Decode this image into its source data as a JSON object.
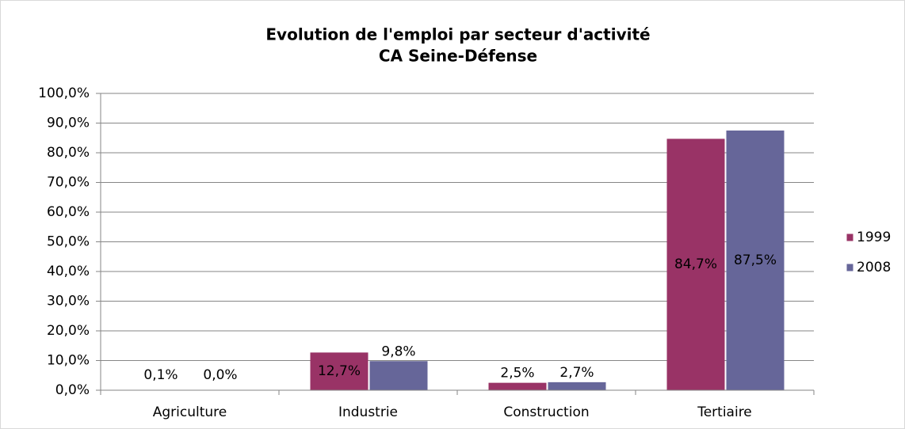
{
  "chart_data": {
    "type": "bar",
    "title": [
      "Evolution de l'emploi par secteur d'activité",
      "CA Seine-Défense"
    ],
    "categories": [
      "Agriculture",
      "Industrie",
      "Construction",
      "Tertiaire"
    ],
    "series": [
      {
        "name": "1999",
        "color": "#993366",
        "values": [
          0.1,
          12.7,
          2.5,
          84.7
        ],
        "value_labels": [
          "0,1%",
          "12,7%",
          "2,5%",
          "84,7%"
        ]
      },
      {
        "name": "2008",
        "color": "#666699",
        "values": [
          0.0,
          9.8,
          2.7,
          87.5
        ],
        "value_labels": [
          "0,0%",
          "9,8%",
          "2,7%",
          "87,5%"
        ]
      }
    ],
    "ylim": [
      0,
      100
    ],
    "yticks": [
      {
        "value": 0,
        "label": "0,0%"
      },
      {
        "value": 10,
        "label": "10,0%"
      },
      {
        "value": 20,
        "label": "20,0%"
      },
      {
        "value": 30,
        "label": "30,0%"
      },
      {
        "value": 40,
        "label": "40,0%"
      },
      {
        "value": 50,
        "label": "50,0%"
      },
      {
        "value": 60,
        "label": "60,0%"
      },
      {
        "value": 70,
        "label": "70,0%"
      },
      {
        "value": 80,
        "label": "80,0%"
      },
      {
        "value": 90,
        "label": "90,0%"
      },
      {
        "value": 100,
        "label": "100,0%"
      }
    ],
    "grid": true,
    "legend": "right"
  }
}
